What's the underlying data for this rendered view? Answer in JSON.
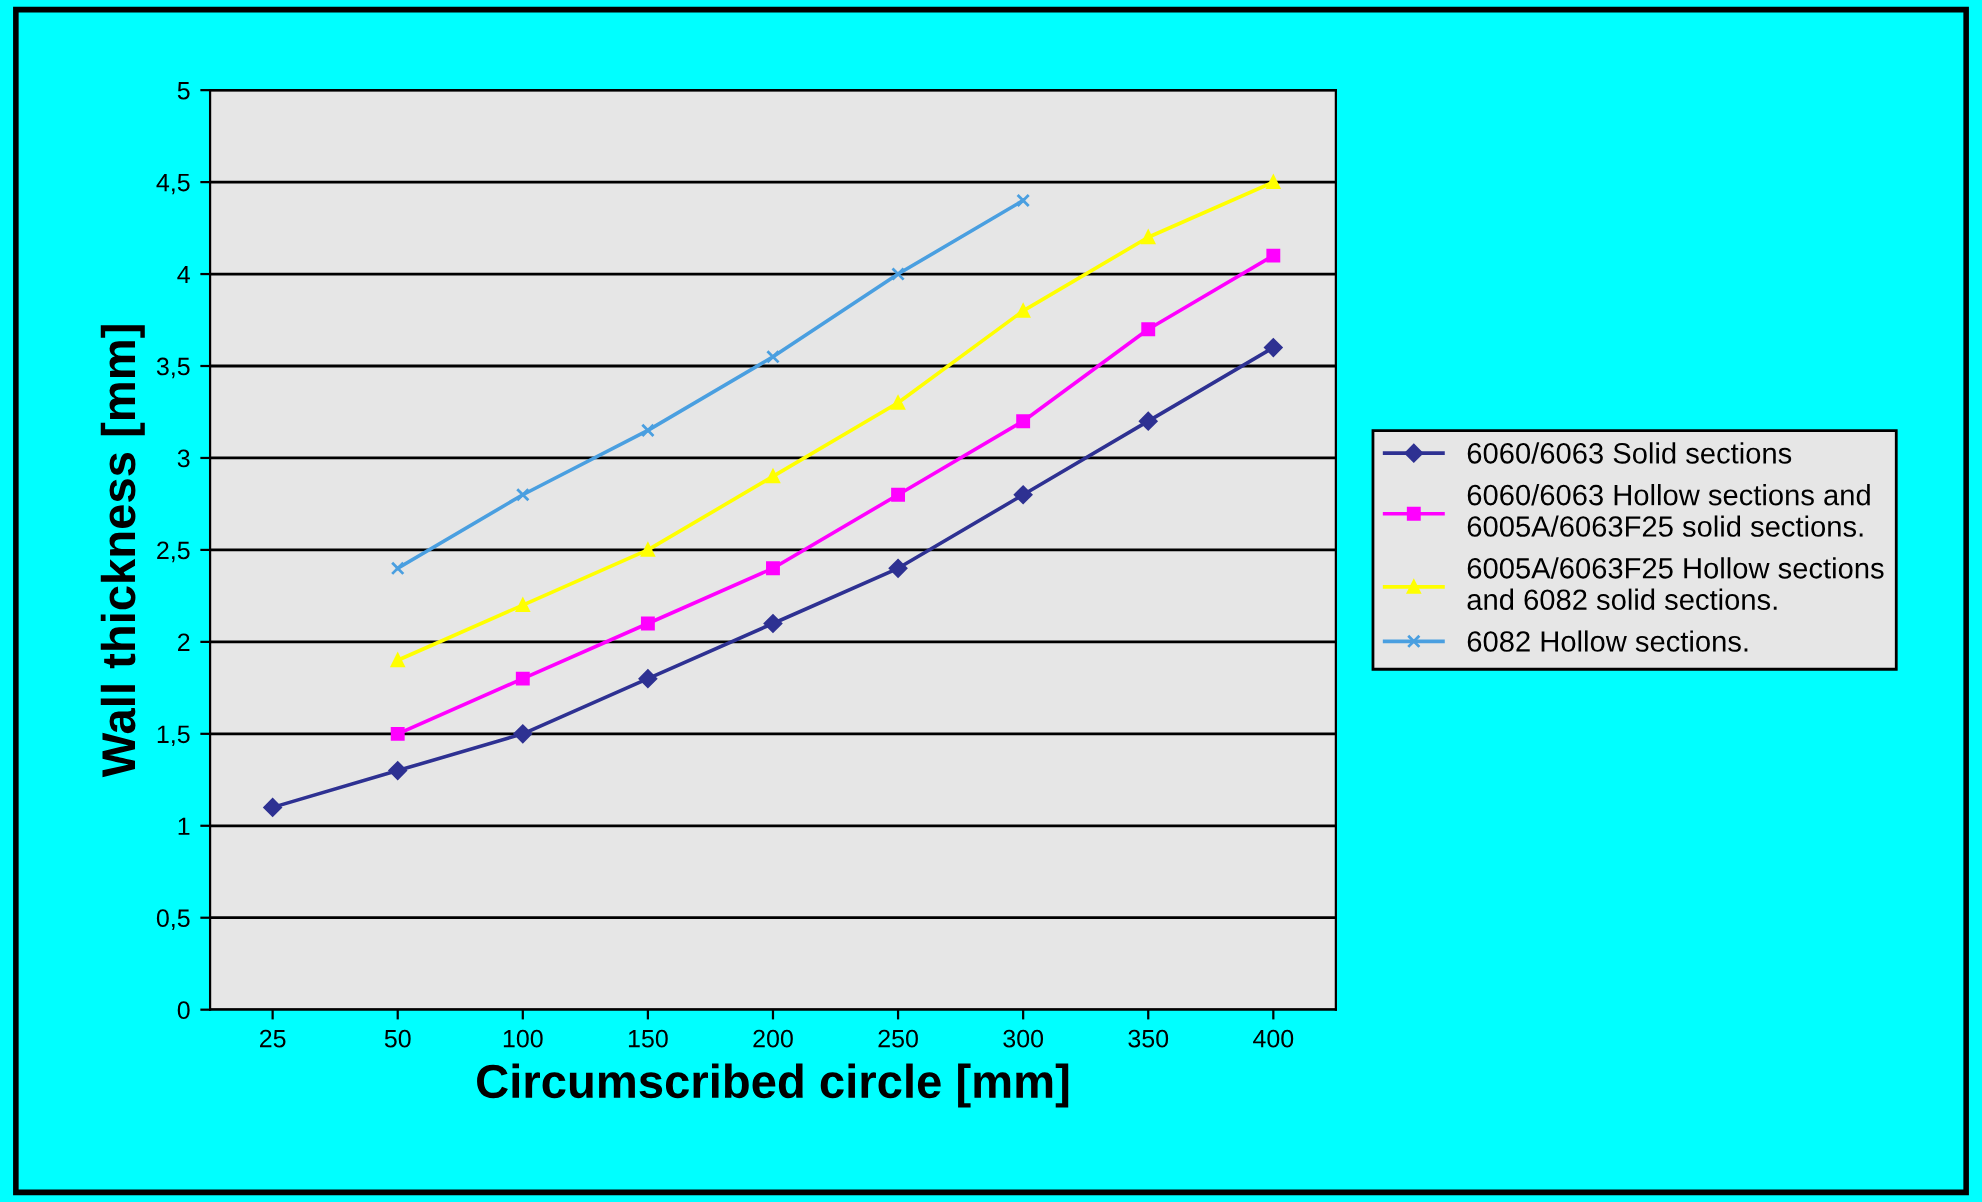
{
  "chart_data": {
    "type": "line",
    "xlabel": "Circumscribed circle [mm]",
    "ylabel": "Wall thickness [mm]",
    "categories": [
      "25",
      "50",
      "100",
      "150",
      "200",
      "250",
      "300",
      "350",
      "400"
    ],
    "series": [
      {
        "name": "6060/6063 Solid sections",
        "color": "#2e3192",
        "marker": "diamond",
        "values": [
          1.1,
          1.3,
          1.5,
          1.8,
          2.1,
          2.4,
          2.8,
          3.2,
          3.6
        ]
      },
      {
        "name": "6060/6063 Hollow sections and\n6005A/6063F25 solid sections.",
        "color": "#ff00ff",
        "marker": "square",
        "values": [
          null,
          1.5,
          1.8,
          2.1,
          2.4,
          2.8,
          3.2,
          3.7,
          4.1
        ]
      },
      {
        "name": "6005A/6063F25 Hollow sections\nand 6082 solid sections.",
        "color": "#ffff00",
        "marker": "triangle",
        "values": [
          null,
          1.9,
          2.2,
          2.5,
          2.9,
          3.3,
          3.8,
          4.2,
          4.5
        ]
      },
      {
        "name": "6082 Hollow sections.",
        "color": "#4a9fe0",
        "marker": "cross",
        "values": [
          null,
          2.4,
          2.8,
          3.15,
          3.55,
          4.0,
          4.4,
          null,
          null
        ]
      }
    ],
    "ylim": [
      0,
      5
    ],
    "yticks": [
      0,
      {
        "value": 0.5,
        "label": "0,5"
      },
      1,
      {
        "value": 1.5,
        "label": "1,5"
      },
      2,
      {
        "value": 2.5,
        "label": "2,5"
      },
      3,
      {
        "value": 3.5,
        "label": "3,5"
      },
      4,
      {
        "value": 4.5,
        "label": "4,5"
      },
      5
    ],
    "grid": "y",
    "legend": "right",
    "line_style": "solid"
  }
}
